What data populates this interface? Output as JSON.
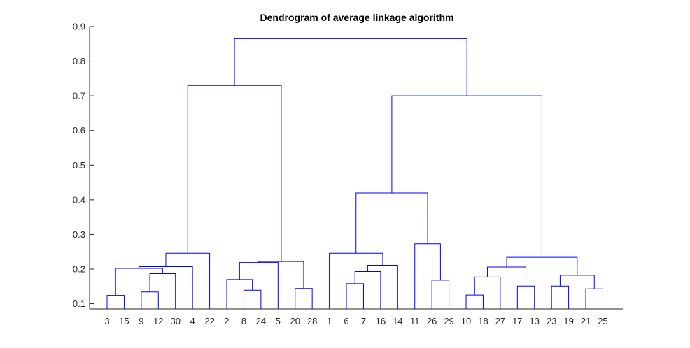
{
  "chart_data": {
    "type": "dendrogram",
    "title": "Dendrogram of average linkage algorithm",
    "xlabel": "",
    "ylabel": "",
    "ylim": [
      0.085,
      0.9
    ],
    "y_ticks": [
      0.1,
      0.2,
      0.3,
      0.4,
      0.5,
      0.6,
      0.7,
      0.8,
      0.9
    ],
    "y_tick_labels": [
      "0.1",
      "0.2",
      "0.3",
      "0.4",
      "0.5",
      "0.6",
      "0.7",
      "0.8",
      "0.9"
    ],
    "leaf_order": [
      "3",
      "15",
      "9",
      "12",
      "30",
      "4",
      "22",
      "2",
      "8",
      "24",
      "5",
      "20",
      "28",
      "1",
      "6",
      "7",
      "16",
      "14",
      "11",
      "26",
      "29",
      "10",
      "18",
      "27",
      "17",
      "13",
      "23",
      "19",
      "21",
      "25"
    ],
    "merges": [
      {
        "id": "m1",
        "left": "3",
        "right": "15",
        "height": 0.124
      },
      {
        "id": "m2",
        "left": "9",
        "right": "12",
        "height": 0.134
      },
      {
        "id": "m3",
        "left": "m2",
        "right": "30",
        "height": 0.187
      },
      {
        "id": "m4",
        "left": "m1",
        "right": "m3",
        "height": 0.202
      },
      {
        "id": "m5",
        "left": "m4",
        "right": "4",
        "height": 0.207
      },
      {
        "id": "m6",
        "left": "m5",
        "right": "22",
        "height": 0.246
      },
      {
        "id": "m7",
        "left": "8",
        "right": "24",
        "height": 0.139
      },
      {
        "id": "m8",
        "left": "2",
        "right": "m7",
        "height": 0.17
      },
      {
        "id": "m9",
        "left": "m8",
        "right": "5",
        "height": 0.219
      },
      {
        "id": "m10",
        "left": "20",
        "right": "28",
        "height": 0.144
      },
      {
        "id": "m11",
        "left": "m9",
        "right": "m10",
        "height": 0.222
      },
      {
        "id": "m12",
        "left": "m6",
        "right": "m11",
        "height": 0.73
      },
      {
        "id": "m13",
        "left": "6",
        "right": "7",
        "height": 0.158
      },
      {
        "id": "m14",
        "left": "m13",
        "right": "16",
        "height": 0.193
      },
      {
        "id": "m15",
        "left": "m14",
        "right": "14",
        "height": 0.211
      },
      {
        "id": "m16",
        "left": "1",
        "right": "m15",
        "height": 0.246
      },
      {
        "id": "m17",
        "left": "26",
        "right": "29",
        "height": 0.168
      },
      {
        "id": "m18",
        "left": "11",
        "right": "m17",
        "height": 0.273
      },
      {
        "id": "m19",
        "left": "m16",
        "right": "m18",
        "height": 0.42
      },
      {
        "id": "m20",
        "left": "10",
        "right": "18",
        "height": 0.125
      },
      {
        "id": "m21",
        "left": "m20",
        "right": "27",
        "height": 0.177
      },
      {
        "id": "m22",
        "left": "17",
        "right": "13",
        "height": 0.151
      },
      {
        "id": "m23",
        "left": "m21",
        "right": "m22",
        "height": 0.206
      },
      {
        "id": "m24",
        "left": "23",
        "right": "19",
        "height": 0.151
      },
      {
        "id": "m25",
        "left": "21",
        "right": "25",
        "height": 0.143
      },
      {
        "id": "m26",
        "left": "m24",
        "right": "m25",
        "height": 0.182
      },
      {
        "id": "m27",
        "left": "m23",
        "right": "m26",
        "height": 0.234
      },
      {
        "id": "m28",
        "left": "m19",
        "right": "m27",
        "height": 0.7
      },
      {
        "id": "m29",
        "left": "m12",
        "right": "m28",
        "height": 0.865
      }
    ],
    "link_color": "#0000ff",
    "grid": false,
    "legend": "none"
  }
}
